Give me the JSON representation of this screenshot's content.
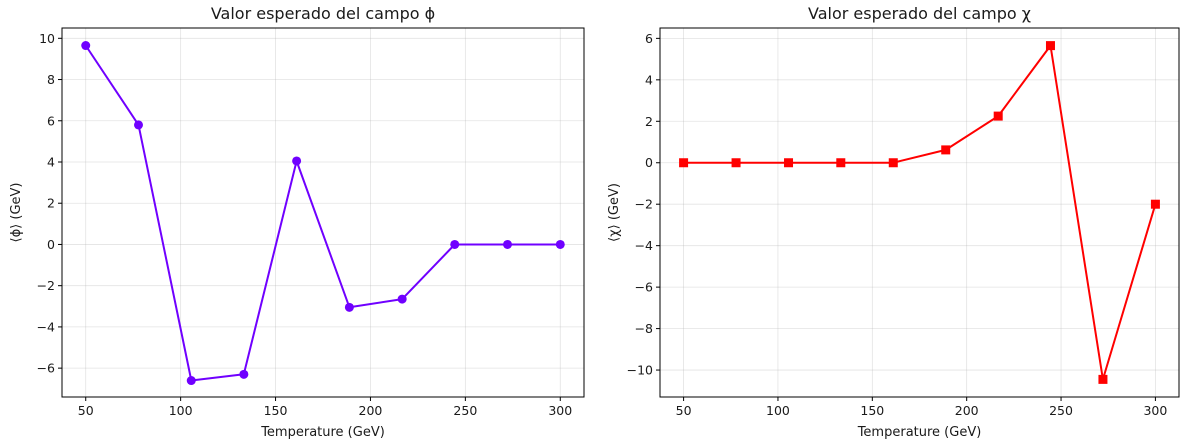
{
  "chart_data": [
    {
      "type": "line",
      "title": "Valor esperado del campo ϕ",
      "xlabel": "Temperature (GeV)",
      "ylabel": "⟨ϕ⟩ (GeV)",
      "xlim": [
        37.5,
        312.5
      ],
      "ylim": [
        -7.4,
        10.5
      ],
      "xticks": [
        50,
        100,
        150,
        200,
        250,
        300
      ],
      "yticks": [
        -6,
        -4,
        -2,
        0,
        2,
        4,
        6,
        8,
        10
      ],
      "grid": true,
      "color": "#7000ff",
      "marker": "circle",
      "series": [
        {
          "x": [
            50,
            77.8,
            105.6,
            133.3,
            161.1,
            188.9,
            216.7,
            244.4,
            272.2,
            300
          ],
          "values": [
            9.65,
            5.8,
            -6.6,
            -6.3,
            4.05,
            -3.05,
            -2.65,
            0.0,
            0.0,
            0.0
          ]
        }
      ]
    },
    {
      "type": "line",
      "title": "Valor esperado del campo χ",
      "xlabel": "Temperature (GeV)",
      "ylabel": "⟨χ⟩ (GeV)",
      "xlim": [
        37.5,
        312.5
      ],
      "ylim": [
        -11.3,
        6.5
      ],
      "xticks": [
        50,
        100,
        150,
        200,
        250,
        300
      ],
      "yticks": [
        -10,
        -8,
        -6,
        -4,
        -2,
        0,
        2,
        4,
        6
      ],
      "grid": true,
      "color": "#ff0000",
      "marker": "square",
      "series": [
        {
          "x": [
            50,
            77.8,
            105.6,
            133.3,
            161.1,
            188.9,
            216.7,
            244.4,
            272.2,
            300
          ],
          "values": [
            0.0,
            0.0,
            0.0,
            0.0,
            0.0,
            0.62,
            2.25,
            5.65,
            -10.45,
            -2.0
          ]
        }
      ]
    }
  ]
}
